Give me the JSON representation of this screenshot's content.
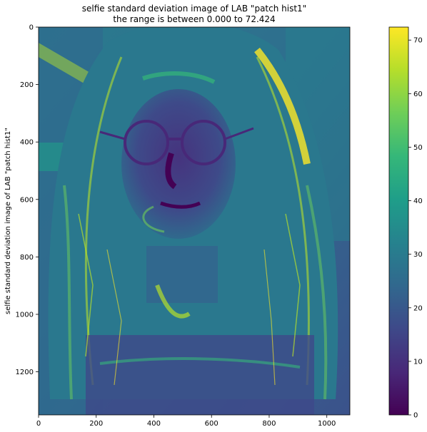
{
  "figure": {
    "title_line1": "selfie standard deviation image of LAB \"patch hist1\"",
    "title_line2": "the range is between 0.000 to  72.424",
    "ylabel": "selfie standard deviation image of LAB \"patch hist1\""
  },
  "image_axes": {
    "x_ticks": [
      0,
      200,
      400,
      600,
      800,
      1000
    ],
    "y_ticks": [
      0,
      200,
      400,
      600,
      800,
      1000,
      1200
    ],
    "xlim": [
      0,
      1080
    ],
    "ylim": [
      1350,
      0
    ]
  },
  "colorbar": {
    "colormap": "viridis",
    "range": [
      0,
      72.424
    ],
    "ticks": [
      0,
      10,
      20,
      30,
      40,
      50,
      60,
      70
    ],
    "colors": [
      "#440154",
      "#482878",
      "#3e4989",
      "#31688e",
      "#26828e",
      "#1f9e89",
      "#35b779",
      "#6ece58",
      "#b5de2b",
      "#fde725"
    ]
  },
  "image_content": {
    "icon": "viridis-heatmap-selfie-portrait"
  }
}
